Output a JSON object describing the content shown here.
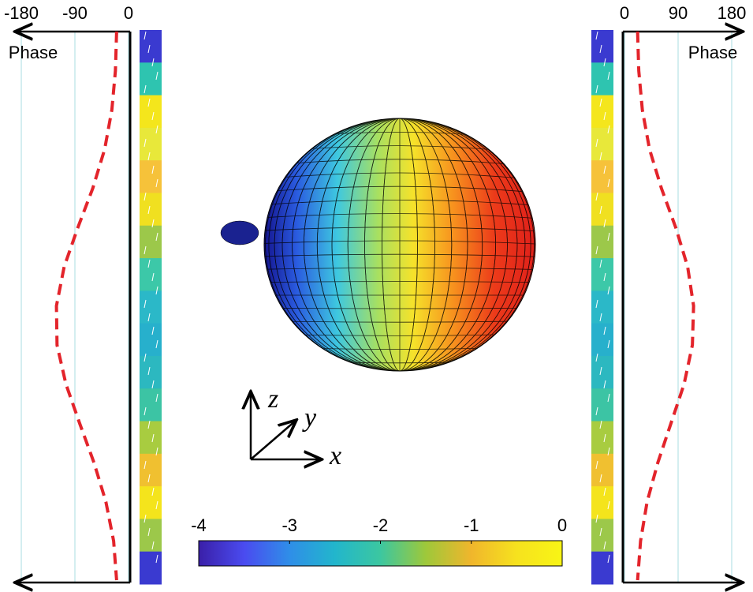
{
  "chart_data": [
    {
      "type": "line",
      "xlabel": "Phase",
      "xlim": [
        -180,
        0
      ],
      "xticks": [
        -180,
        -90,
        0
      ],
      "grid": true,
      "color": "#e3242b",
      "line_style": "dashed",
      "values": [
        -20,
        -22,
        -28,
        -40,
        -60,
        -85,
        -108,
        -121,
        -120,
        -105,
        -82,
        -58,
        -38,
        -25,
        -20
      ]
    },
    {
      "type": "line",
      "xlabel": "Phase",
      "xlim": [
        0,
        180
      ],
      "xticks": [
        0,
        90,
        180
      ],
      "grid": true,
      "color": "#e3242b",
      "line_style": "dashed",
      "values": [
        22,
        24,
        30,
        42,
        62,
        86,
        106,
        116,
        114,
        100,
        78,
        56,
        38,
        27,
        22
      ]
    },
    {
      "type": "colorbar",
      "lim": [
        -4,
        0
      ],
      "ticks": [
        -4,
        -3,
        -2,
        -1,
        0
      ],
      "colors": [
        "#3a1fa8",
        "#4a4bf0",
        "#2f8ee8",
        "#22b6cc",
        "#3cc7a0",
        "#9ec83a",
        "#f0b62c",
        "#f6e21e",
        "#f8f515"
      ]
    }
  ],
  "axis_glyph": {
    "z": "z",
    "y": "y",
    "x": "x"
  }
}
